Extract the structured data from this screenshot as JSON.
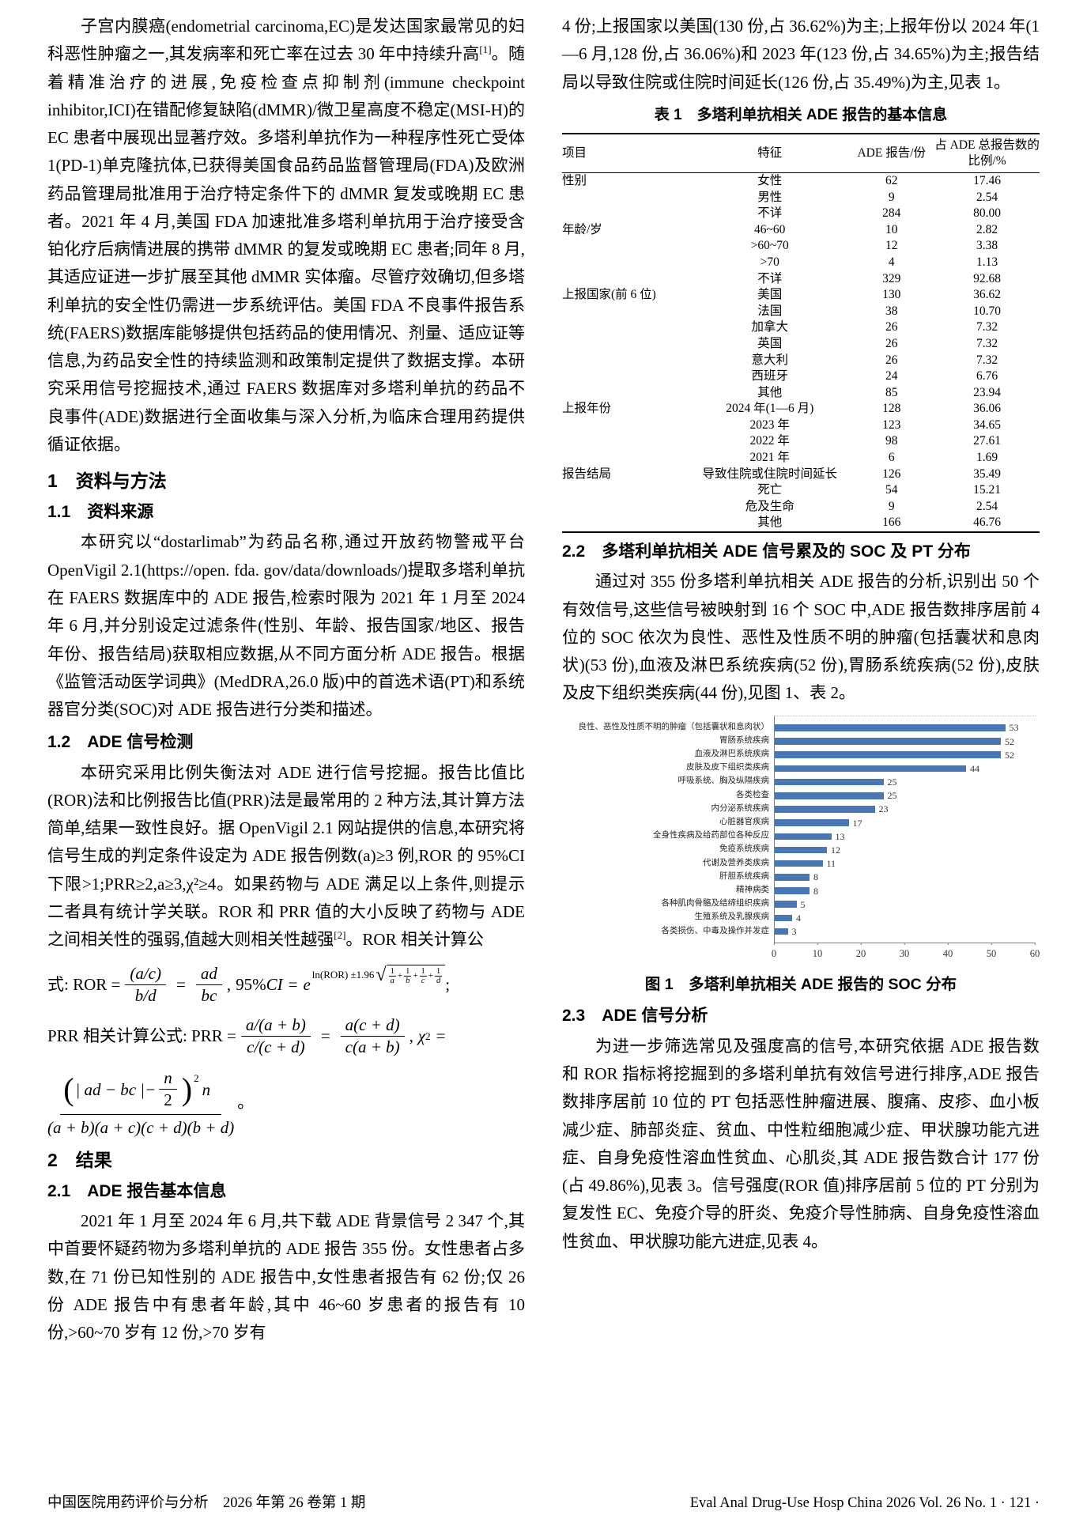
{
  "page": {
    "footer_left": "中国医院用药评价与分析　2026 年第 26 卷第 1 期",
    "footer_right": "Eval Anal Drug-Use Hosp China 2026 Vol. 26 No. 1 · 121 ·"
  },
  "intro": {
    "p1": "子宫内膜癌(endometrial carcinoma,EC)是发达国家最常见的妇科恶性肿瘤之一,其发病率和死亡率在过去 30 年中持续升高",
    "ref1": "[1]",
    "p2": "。随着精准治疗的进展,免疫检查点抑制剂(immune checkpoint inhibitor,ICI)在错配修复缺陷(dMMR)/微卫星高度不稳定(MSI-H)的 EC 患者中展现出显著疗效。多塔利单抗作为一种程序性死亡受体 1(PD-1)单克隆抗体,已获得美国食品药品监督管理局(FDA)及欧洲药品管理局批准用于治疗特定条件下的 dMMR 复发或晚期 EC 患者。2021 年 4 月,美国 FDA 加速批准多塔利单抗用于治疗接受含铂化疗后病情进展的携带 dMMR 的复发或晚期 EC 患者;同年 8 月,其适应证进一步扩展至其他 dMMR 实体瘤。尽管疗效确切,但多塔利单抗的安全性仍需进一步系统评估。美国 FDA 不良事件报告系统(FAERS)数据库能够提供包括药品的使用情况、剂量、适应证等信息,为药品安全性的持续监测和政策制定提供了数据支撑。本研究采用信号挖掘技术,通过 FAERS 数据库对多塔利单抗的药品不良事件(ADE)数据进行全面收集与深入分析,为临床合理用药提供循证依据。"
  },
  "sec1": {
    "h": "1　资料与方法"
  },
  "sec1_1": {
    "h": "1.1　资料来源",
    "p": "本研究以“dostarlimab”为药品名称,通过开放药物警戒平台 OpenVigil 2.1(https://open. fda. gov/data/downloads/)提取多塔利单抗在 FAERS 数据库中的 ADE 报告,检索时限为 2021 年 1 月至 2024 年 6 月,并分别设定过滤条件(性别、年龄、报告国家/地区、报告年份、报告结局)获取相应数据,从不同方面分析 ADE 报告。根据《监管活动医学词典》(MedDRA,26.0 版)中的首选术语(PT)和系统器官分类(SOC)对 ADE 报告进行分类和描述。"
  },
  "sec1_2": {
    "h": "1.2　ADE 信号检测",
    "p1": "本研究采用比例失衡法对 ADE 进行信号挖掘。报告比值比(ROR)法和比例报告比值(PRR)法是最常用的 2 种方法,其计算方法简单,结果一致性良好。据 OpenVigil 2.1 网站提供的信息,本研究将信号生成的判定条件设定为 ADE 报告例数(a)≥3 例,ROR 的 95%CI 下限>1;PRR≥2,a≥3,χ²≥4。如果药物与 ADE 满足以上条件,则提示二者具有统计学关联。ROR 和 PRR 值的大小反映了药物与 ADE 之间相关性的强弱,值越大则相关性越强",
    "ref2": "[2]",
    "p2": "。ROR 相关计算公"
  },
  "formulas": {
    "ror_label": "式: ROR  =",
    "ror_f1_num": "(a/c)",
    "ror_f1_den": "b/d",
    "eq": "=",
    "ror_f2_num": "ad",
    "ror_f2_den": "bc",
    "comma": ",",
    "ci_pre": "95%",
    "ci_label": "CI",
    "e_base": "e",
    "exp_prefix": "ln(ROR) ±1.96",
    "radical": "√",
    "r1n": "1",
    "r1d": "a",
    "r2n": "1",
    "r2d": "b",
    "r3n": "1",
    "r3d": "c",
    "r4n": "1",
    "r4d": "d",
    "plus": "+",
    "semicolon": ";",
    "prr_label": "PRR 相关计算公式: PRR  =",
    "prr_f1_num": "a/(a + b)",
    "prr_f1_den": "c/(c + d)",
    "prr_f2_num": "a(c + d)",
    "prr_f2_den": "c(a + b)",
    "chi_base": "χ",
    "sup_two": "2",
    "num_open": "(",
    "num_abs": "| ad − bc |−",
    "half_num": "n",
    "half_den": "2",
    "num_close": ")",
    "num_n": "n",
    "den_text": "(a + b)(a + c)(c + d)(b + d)",
    "period": "。"
  },
  "sec2": {
    "h": "2　结果"
  },
  "sec2_1": {
    "h": "2.1　ADE 报告基本信息",
    "p": "2021 年 1 月至 2024 年 6 月,共下载 ADE 背景信号 2 347 个,其中首要怀疑药物为多塔利单抗的 ADE 报告 355 份。女性患者占多数,在 71 份已知性别的 ADE 报告中,女性患者报告有 62 份;仅 26 份 ADE 报告中有患者年龄,其中 46~60 岁患者的报告有 10 份,>60~70 岁有 12 份,>70 岁有"
  },
  "right_col": {
    "cont_p": "4 份;上报国家以美国(130 份,占 36.62%)为主;上报年份以 2024 年(1—6 月,128 份,占 36.06%)和 2023 年(123 份,占 34.65%)为主;报告结局以导致住院或住院时间延长(126 份,占 35.49%)为主,见表 1。"
  },
  "table1": {
    "title": "表 1　多塔利单抗相关 ADE 报告的基本信息",
    "headers": [
      "项目",
      "特征",
      "ADE 报告/份",
      "占 ADE 总报告数的比例/%"
    ],
    "rows": [
      [
        "性别",
        "女性",
        "62",
        "17.46"
      ],
      [
        "",
        "男性",
        "9",
        "2.54"
      ],
      [
        "",
        "不详",
        "284",
        "80.00"
      ],
      [
        "年龄/岁",
        "46~60",
        "10",
        "2.82"
      ],
      [
        "",
        ">60~70",
        "12",
        "3.38"
      ],
      [
        "",
        ">70",
        "4",
        "1.13"
      ],
      [
        "",
        "不详",
        "329",
        "92.68"
      ],
      [
        "上报国家(前 6 位)",
        "美国",
        "130",
        "36.62"
      ],
      [
        "",
        "法国",
        "38",
        "10.70"
      ],
      [
        "",
        "加拿大",
        "26",
        "7.32"
      ],
      [
        "",
        "英国",
        "26",
        "7.32"
      ],
      [
        "",
        "意大利",
        "26",
        "7.32"
      ],
      [
        "",
        "西班牙",
        "24",
        "6.76"
      ],
      [
        "",
        "其他",
        "85",
        "23.94"
      ],
      [
        "上报年份",
        "2024 年(1—6 月)",
        "128",
        "36.06"
      ],
      [
        "",
        "2023 年",
        "123",
        "34.65"
      ],
      [
        "",
        "2022 年",
        "98",
        "27.61"
      ],
      [
        "",
        "2021 年",
        "6",
        "1.69"
      ],
      [
        "报告结局",
        "导致住院或住院时间延长",
        "126",
        "35.49"
      ],
      [
        "",
        "死亡",
        "54",
        "15.21"
      ],
      [
        "",
        "危及生命",
        "9",
        "2.54"
      ],
      [
        "",
        "其他",
        "166",
        "46.76"
      ]
    ]
  },
  "sec2_2": {
    "h": "2.2　多塔利单抗相关 ADE 信号累及的 SOC 及 PT 分布",
    "p": "通过对 355 份多塔利单抗相关 ADE 报告的分析,识别出 50 个有效信号,这些信号被映射到 16 个 SOC 中,ADE 报告数排序居前 4 位的 SOC 依次为良性、恶性及性质不明的肿瘤(包括囊状和息肉状)(53 份),血液及淋巴系统疾病(52 份),胃肠系统疾病(52 份),皮肤及皮下组织类疾病(44 份),见图 1、表 2。"
  },
  "chart_data": {
    "type": "bar",
    "orientation": "horizontal",
    "title": "图 1　多塔利单抗相关 ADE 报告的 SOC 分布",
    "categories": [
      "良性、恶性及性质不明的肿瘤（包括囊状和息肉状）",
      "胃肠系统疾病",
      "血液及淋巴系统疾病",
      "皮肤及皮下组织类疾病",
      "呼吸系统、胸及纵隔疾病",
      "各类检查",
      "内分泌系统疾病",
      "心脏器官疾病",
      "全身性疾病及给药部位各种反应",
      "免疫系统疾病",
      "代谢及营养类疾病",
      "肝胆系统疾病",
      "精神病类",
      "各种肌肉骨骼及结缔组织疾病",
      "生殖系统及乳腺疾病",
      "各类损伤、中毒及操作并发症"
    ],
    "values": [
      53,
      52,
      52,
      44,
      25,
      25,
      23,
      17,
      13,
      12,
      11,
      8,
      8,
      5,
      4,
      3
    ],
    "xlabel": "",
    "ylabel": "",
    "xlim": [
      0,
      60
    ],
    "xticks": [
      0,
      10,
      20,
      30,
      40,
      50,
      60
    ],
    "bar_color": "#4a76b4",
    "grid": false,
    "legend": "none",
    "value_labels": "right-of-bar"
  },
  "sec2_3": {
    "h": "2.3　ADE 信号分析",
    "p": "为进一步筛选常见及强度高的信号,本研究依据 ADE 报告数和 ROR 指标将挖掘到的多塔利单抗有效信号进行排序,ADE 报告数排序居前 10 位的 PT 包括恶性肿瘤进展、腹痛、皮疹、血小板减少症、肺部炎症、贫血、中性粒细胞减少症、甲状腺功能亢进症、自身免疫性溶血性贫血、心肌炎,其 ADE 报告数合计 177 份(占 49.86%),见表 3。信号强度(ROR 值)排序居前 5 位的 PT 分别为复发性 EC、免疫介导的肝炎、免疫介导性肺病、自身免疫性溶血性贫血、甲状腺功能亢进症,见表 4。"
  }
}
